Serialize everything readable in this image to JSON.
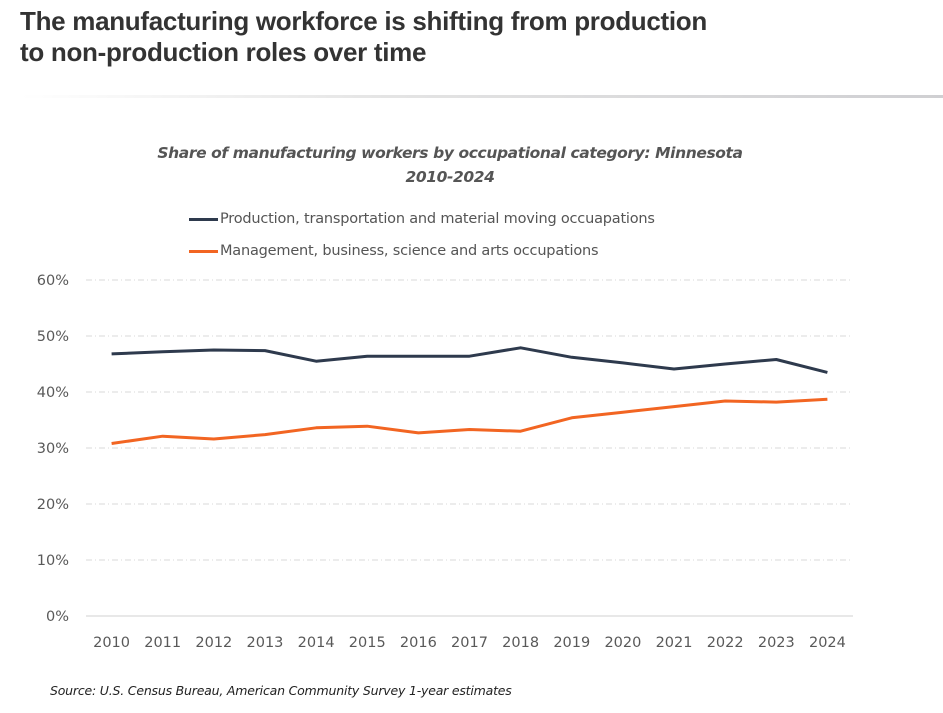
{
  "headline": {
    "line1": "The manufacturing workforce is shifting from production",
    "line2": "to non-production roles over time"
  },
  "source": "Source: U.S. Census Bureau, American Community Survey 1-year estimates",
  "chart_data": {
    "type": "line",
    "title": "Share of manufacturing workers by occupational category: Minnesota",
    "subtitle": "2010-2024",
    "xlabel": "",
    "ylabel": "",
    "x": [
      "2010",
      "2011",
      "2012",
      "2013",
      "2014",
      "2015",
      "2016",
      "2017",
      "2018",
      "2019",
      "2020",
      "2021",
      "2022",
      "2023",
      "2024"
    ],
    "yticks": [
      "0%",
      "10%",
      "20%",
      "30%",
      "40%",
      "50%",
      "60%"
    ],
    "ylim": [
      0,
      60
    ],
    "grid": true,
    "legend_position": "top",
    "series": [
      {
        "name": "Production, transportation and material moving occuapations",
        "color": "#2e3a4d",
        "values": [
          46.8,
          47.2,
          47.5,
          47.4,
          45.5,
          46.4,
          46.4,
          46.4,
          47.9,
          46.2,
          45.2,
          44.1,
          45.0,
          45.8,
          43.5
        ]
      },
      {
        "name": "Management, business, science and arts occupations",
        "color": "#f26522",
        "values": [
          30.8,
          32.1,
          31.6,
          32.4,
          33.6,
          33.9,
          32.7,
          33.3,
          33.0,
          35.4,
          36.4,
          37.4,
          38.4,
          38.2,
          38.7
        ]
      }
    ]
  }
}
